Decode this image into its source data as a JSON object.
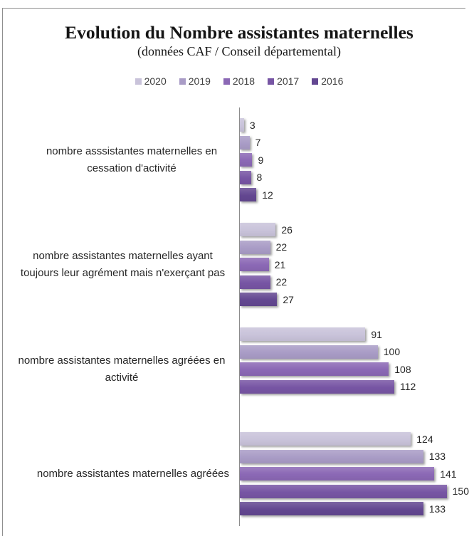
{
  "chart_data": {
    "type": "bar",
    "orientation": "horizontal",
    "title": "Evolution du Nombre assistantes maternelles",
    "subtitle": "(données CAF / Conseil départemental)",
    "categories": [
      "nombre asssistantes maternelles en cessation d'activité",
      "nombre assistantes maternelles ayant toujours leur agrément mais n'exerçant pas",
      "nombre assistantes maternelles agréées en activité",
      "nombre assistantes maternelles agréées"
    ],
    "series": [
      {
        "name": "2020",
        "color": "#c9c3da",
        "values": [
          3,
          26,
          91,
          124
        ]
      },
      {
        "name": "2019",
        "color": "#a99cc6",
        "values": [
          7,
          22,
          100,
          133
        ]
      },
      {
        "name": "2018",
        "color": "#8b68b5",
        "values": [
          9,
          21,
          108,
          141
        ]
      },
      {
        "name": "2017",
        "color": "#7755a4",
        "values": [
          8,
          22,
          112,
          150
        ]
      },
      {
        "name": "2016",
        "color": "#634791",
        "values": [
          12,
          27,
          null,
          133
        ]
      }
    ],
    "legend_position": "top",
    "grid": false,
    "data_labels": true
  }
}
